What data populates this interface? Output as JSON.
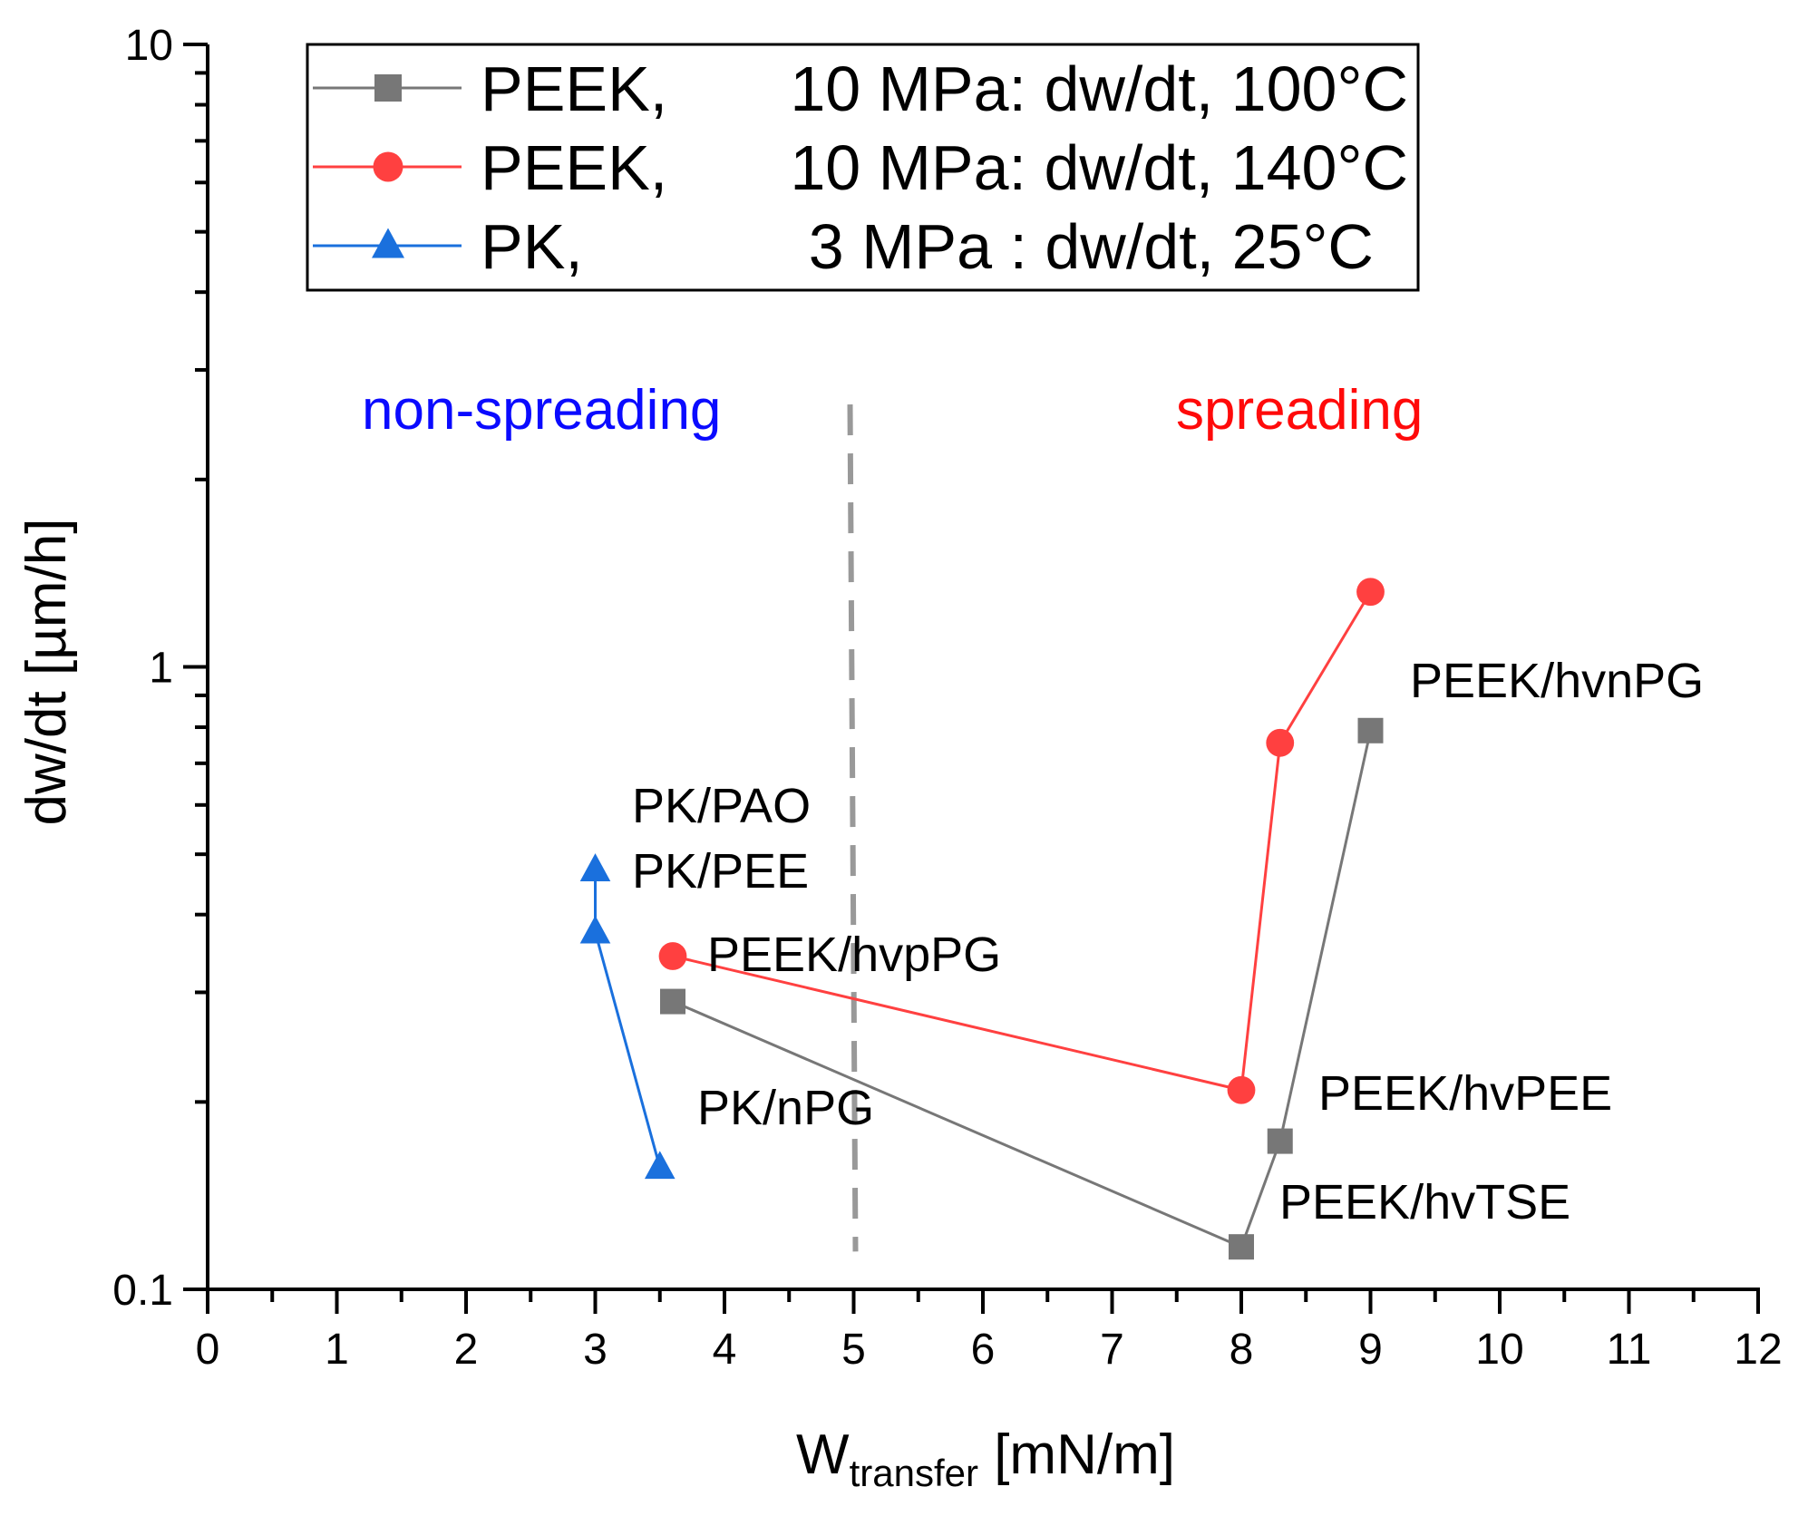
{
  "chart_data": {
    "type": "scatter",
    "title": "",
    "xlabel_main": "W",
    "xlabel_sub": "transfer",
    "xlabel_unit": " [mN/m]",
    "ylabel": "dw/dt [µm/h]",
    "xlim": [
      0,
      12
    ],
    "ylim": [
      0.1,
      10
    ],
    "yscale": "log",
    "x_ticks": [
      "0",
      "1",
      "2",
      "3",
      "4",
      "5",
      "6",
      "7",
      "8",
      "9",
      "10",
      "11",
      "12"
    ],
    "y_ticks": [
      "0.1",
      "1",
      "10"
    ],
    "legend_placement": "top-left",
    "series": [
      {
        "name": "PEEK,",
        "desc": "10 MPa: dw/dt, 100°C",
        "color": "#777777",
        "marker": "square",
        "x": [
          3.6,
          8.0,
          8.3,
          9.0
        ],
        "y": [
          0.29,
          0.117,
          0.173,
          0.79
        ]
      },
      {
        "name": "PEEK,",
        "desc": "10 MPa: dw/dt, 140°C",
        "color": "#ff4040",
        "marker": "circle",
        "x": [
          3.6,
          8.0,
          8.3,
          9.0
        ],
        "y": [
          0.343,
          0.209,
          0.755,
          1.32
        ]
      },
      {
        "name": "PK,",
        "desc": "3 MPa : dw/dt, 25°C",
        "color": "#1a70dd",
        "marker": "triangle",
        "x": [
          3.0,
          3.0,
          3.5
        ],
        "y": [
          0.472,
          0.375,
          0.157
        ]
      }
    ],
    "divider": {
      "x": 5,
      "y": [
        0.115,
        2.64
      ],
      "color": "#999999",
      "style": "dashed"
    },
    "regions": [
      {
        "text": "non-spreading",
        "color": "#0a0aff"
      },
      {
        "text": "spreading",
        "color": "#ff0a0a"
      }
    ],
    "annotations": [
      "PEEK/hvnPG",
      "PK/PAO",
      "PK/PEE",
      "PEEK/hvpPG",
      "PK/nPG",
      "PEEK/hvPEE",
      "PEEK/hvTSE"
    ]
  }
}
